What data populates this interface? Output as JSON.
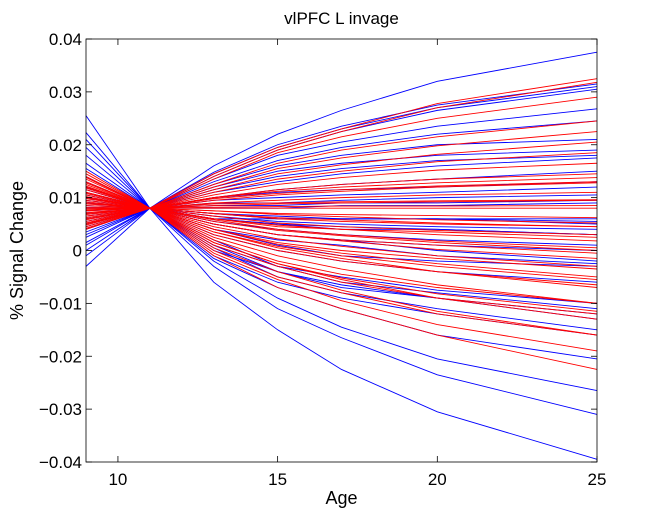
{
  "chart_data": {
    "type": "line",
    "title": "vlPFC L invage",
    "xlabel": "Age",
    "ylabel": "% Signal Change",
    "xlim": [
      9,
      25
    ],
    "ylim": [
      -0.04,
      0.04
    ],
    "xticks": [
      10,
      15,
      20,
      25
    ],
    "yticks": [
      -0.04,
      -0.03,
      -0.02,
      -0.01,
      0,
      0.01,
      0.02,
      0.03,
      0.04
    ],
    "xtick_labels": [
      "10",
      "15",
      "20",
      "25"
    ],
    "ytick_labels": [
      "−0.04",
      "−0.03",
      "−0.02",
      "−0.01",
      "0",
      "0.01",
      "0.02",
      "0.03",
      "0.04"
    ],
    "grid": false,
    "x": [
      9,
      11,
      13,
      15,
      17,
      20,
      25
    ],
    "pivot": {
      "x": 11,
      "y": 0.008
    },
    "colors": {
      "blue": "#0000ff",
      "red": "#ff0000"
    },
    "series": [
      {
        "color": "blue",
        "values": [
          0.0255,
          0.008,
          0.006,
          0.006,
          0.006,
          0.006,
          0.006
        ]
      },
      {
        "color": "blue",
        "values": [
          0.0223,
          0.008,
          0.001,
          -0.004,
          -0.007,
          -0.009,
          -0.012
        ]
      },
      {
        "color": "blue",
        "values": [
          0.021,
          0.008,
          0.004,
          0.001,
          -0.001,
          -0.002,
          -0.003
        ]
      },
      {
        "color": "blue",
        "values": [
          0.0195,
          0.008,
          0.002,
          -0.003,
          -0.006,
          -0.008,
          -0.011
        ]
      },
      {
        "color": "blue",
        "values": [
          0.018,
          0.008,
          0.003,
          0.0,
          -0.002,
          -0.004,
          -0.006
        ]
      },
      {
        "color": "blue",
        "values": [
          0.0165,
          0.008,
          -0.001,
          -0.006,
          -0.009,
          -0.012,
          -0.016
        ]
      },
      {
        "color": "blue",
        "values": [
          0.0155,
          0.008,
          0.005,
          0.003,
          0.002,
          0.001,
          0.0
        ]
      },
      {
        "color": "blue",
        "values": [
          0.014,
          0.008,
          -0.006,
          -0.015,
          -0.0225,
          -0.0305,
          -0.0395
        ]
      },
      {
        "color": "blue",
        "values": [
          0.013,
          0.008,
          -0.003,
          -0.011,
          -0.0165,
          -0.0235,
          -0.031
        ]
      },
      {
        "color": "blue",
        "values": [
          0.012,
          0.008,
          -0.002,
          -0.009,
          -0.0145,
          -0.0205,
          -0.0265
        ]
      },
      {
        "color": "blue",
        "values": [
          0.0115,
          0.008,
          0.006,
          0.005,
          0.004,
          0.004,
          0.003
        ]
      },
      {
        "color": "blue",
        "values": [
          0.011,
          0.008,
          -0.0015,
          -0.007,
          -0.011,
          -0.016,
          -0.0205
        ]
      },
      {
        "color": "blue",
        "values": [
          0.0105,
          0.008,
          0.007,
          0.006,
          0.006,
          0.006,
          0.005
        ]
      },
      {
        "color": "blue",
        "values": [
          0.01,
          0.008,
          0.0,
          -0.004,
          -0.0065,
          -0.009,
          -0.013
        ]
      },
      {
        "color": "blue",
        "values": [
          0.0095,
          0.008,
          0.008,
          0.008,
          0.0085,
          0.0085,
          0.009
        ]
      },
      {
        "color": "blue",
        "values": [
          0.009,
          0.008,
          0.001,
          -0.003,
          -0.005,
          -0.0075,
          -0.01
        ]
      },
      {
        "color": "blue",
        "values": [
          0.0085,
          0.008,
          0.009,
          0.009,
          0.0095,
          0.01,
          0.0105
        ]
      },
      {
        "color": "blue",
        "values": [
          0.008,
          0.008,
          0.004,
          0.002,
          0.001,
          -0.001,
          -0.0025
        ]
      },
      {
        "color": "blue",
        "values": [
          0.0075,
          0.008,
          0.0095,
          0.01,
          0.0105,
          0.011,
          0.012
        ]
      },
      {
        "color": "blue",
        "values": [
          0.007,
          0.008,
          0.01,
          0.0115,
          0.0125,
          0.0135,
          0.015
        ]
      },
      {
        "color": "blue",
        "values": [
          0.0065,
          0.008,
          0.006,
          0.005,
          0.0045,
          0.004,
          0.003
        ]
      },
      {
        "color": "blue",
        "values": [
          0.006,
          0.008,
          0.011,
          0.013,
          0.0145,
          0.016,
          0.0175
        ]
      },
      {
        "color": "blue",
        "values": [
          0.0055,
          0.008,
          0.012,
          0.015,
          0.0165,
          0.018,
          0.019
        ]
      },
      {
        "color": "blue",
        "values": [
          0.005,
          0.008,
          0.007,
          0.0065,
          0.006,
          0.006,
          0.0055
        ]
      },
      {
        "color": "blue",
        "values": [
          0.0045,
          0.008,
          0.013,
          0.017,
          0.0195,
          0.022,
          0.0245
        ]
      },
      {
        "color": "blue",
        "values": [
          0.004,
          0.008,
          0.0135,
          0.018,
          0.0205,
          0.0235,
          0.0268
        ]
      },
      {
        "color": "blue",
        "values": [
          0.0035,
          0.008,
          0.014,
          0.019,
          0.0225,
          0.0265,
          0.0305
        ]
      },
      {
        "color": "blue",
        "values": [
          0.003,
          0.008,
          0.0145,
          0.0195,
          0.023,
          0.027,
          0.031
        ]
      },
      {
        "color": "blue",
        "values": [
          0.0025,
          0.008,
          0.0148,
          0.02,
          0.0235,
          0.0275,
          0.0315
        ]
      },
      {
        "color": "blue",
        "values": [
          0.0015,
          0.008,
          0.016,
          0.022,
          0.0265,
          0.032,
          0.0375
        ]
      },
      {
        "color": "blue",
        "values": [
          0.001,
          0.008,
          0.005,
          0.003,
          0.002,
          0.0,
          -0.002
        ]
      },
      {
        "color": "blue",
        "values": [
          0.0,
          0.008,
          0.01,
          0.011,
          0.0115,
          0.012,
          0.013
        ]
      },
      {
        "color": "blue",
        "values": [
          -0.001,
          0.008,
          0.0115,
          0.014,
          0.0155,
          0.017,
          0.018
        ]
      },
      {
        "color": "blue",
        "values": [
          -0.003,
          0.008,
          0.0125,
          0.016,
          0.018,
          0.02,
          0.021
        ]
      },
      {
        "color": "blue",
        "values": [
          0.01,
          0.008,
          0.0055,
          0.004,
          0.003,
          0.002,
          0.001
        ]
      },
      {
        "color": "blue",
        "values": [
          0.012,
          0.008,
          0.0005,
          -0.005,
          -0.008,
          -0.011,
          -0.015
        ]
      },
      {
        "color": "blue",
        "values": [
          0.009,
          0.008,
          0.0065,
          0.0055,
          0.005,
          0.0045,
          0.004
        ]
      },
      {
        "color": "blue",
        "values": [
          0.008,
          0.008,
          0.0085,
          0.0085,
          0.009,
          0.009,
          0.0095
        ]
      },
      {
        "color": "red",
        "values": [
          0.015,
          0.008,
          0.0,
          -0.005,
          -0.008,
          -0.012,
          -0.016
        ]
      },
      {
        "color": "red",
        "values": [
          0.0145,
          0.008,
          -0.001,
          -0.007,
          -0.011,
          -0.016,
          -0.0225
        ]
      },
      {
        "color": "red",
        "values": [
          0.014,
          0.008,
          0.001,
          -0.003,
          -0.006,
          -0.009,
          -0.012
        ]
      },
      {
        "color": "red",
        "values": [
          0.0135,
          0.008,
          0.002,
          -0.002,
          -0.0045,
          -0.007,
          -0.01
        ]
      },
      {
        "color": "red",
        "values": [
          0.013,
          0.008,
          0.003,
          0.0,
          -0.002,
          -0.004,
          -0.0065
        ]
      },
      {
        "color": "red",
        "values": [
          0.0125,
          0.008,
          0.004,
          0.0015,
          0.0,
          -0.0015,
          -0.0035
        ]
      },
      {
        "color": "red",
        "values": [
          0.012,
          0.008,
          0.005,
          0.003,
          0.002,
          0.001,
          -0.0005
        ]
      },
      {
        "color": "red",
        "values": [
          0.0115,
          0.008,
          0.006,
          0.0045,
          0.004,
          0.0035,
          0.0025
        ]
      },
      {
        "color": "red",
        "values": [
          0.011,
          0.008,
          0.007,
          0.006,
          0.0055,
          0.005,
          0.0045
        ]
      },
      {
        "color": "red",
        "values": [
          0.0108,
          0.008,
          0.0075,
          0.007,
          0.0068,
          0.0066,
          0.0062
        ]
      },
      {
        "color": "red",
        "values": [
          0.0105,
          0.008,
          0.008,
          0.008,
          0.008,
          0.008,
          0.008
        ]
      },
      {
        "color": "red",
        "values": [
          0.0102,
          0.008,
          0.0085,
          0.0088,
          0.009,
          0.0092,
          0.0095
        ]
      },
      {
        "color": "red",
        "values": [
          0.01,
          0.008,
          0.009,
          0.0095,
          0.01,
          0.0105,
          0.011
        ]
      },
      {
        "color": "red",
        "values": [
          0.0098,
          0.008,
          0.0095,
          0.0105,
          0.0112,
          0.012,
          0.0128
        ]
      },
      {
        "color": "red",
        "values": [
          0.0095,
          0.008,
          0.01,
          0.0115,
          0.0125,
          0.0135,
          0.0145
        ]
      },
      {
        "color": "red",
        "values": [
          0.0092,
          0.008,
          0.0105,
          0.0125,
          0.0138,
          0.0152,
          0.0165
        ]
      },
      {
        "color": "red",
        "values": [
          0.009,
          0.008,
          0.011,
          0.0135,
          0.015,
          0.0168,
          0.0185
        ]
      },
      {
        "color": "red",
        "values": [
          0.0088,
          0.008,
          0.0115,
          0.0145,
          0.0162,
          0.0182,
          0.0205
        ]
      },
      {
        "color": "red",
        "values": [
          0.0085,
          0.008,
          0.012,
          0.0155,
          0.0175,
          0.0198,
          0.0225
        ]
      },
      {
        "color": "red",
        "values": [
          0.0082,
          0.008,
          0.0125,
          0.0165,
          0.019,
          0.0215,
          0.0245
        ]
      },
      {
        "color": "red",
        "values": [
          0.008,
          0.008,
          0.0135,
          0.0185,
          0.0215,
          0.025,
          0.029
        ]
      },
      {
        "color": "red",
        "values": [
          0.0078,
          0.008,
          0.0145,
          0.0195,
          0.023,
          0.0278,
          0.0325
        ]
      },
      {
        "color": "red",
        "values": [
          0.0076,
          0.008,
          0.014,
          0.019,
          0.0225,
          0.027,
          0.0318
        ]
      },
      {
        "color": "red",
        "values": [
          0.0075,
          0.008,
          0.007,
          0.0062,
          0.0058,
          0.0052,
          0.0045
        ]
      },
      {
        "color": "red",
        "values": [
          0.0072,
          0.008,
          0.006,
          0.0048,
          0.004,
          0.003,
          0.0018
        ]
      },
      {
        "color": "red",
        "values": [
          0.007,
          0.008,
          0.0055,
          0.0038,
          0.0028,
          0.0015,
          0.0
        ]
      },
      {
        "color": "red",
        "values": [
          0.0068,
          0.008,
          0.005,
          0.003,
          0.0018,
          0.0002,
          -0.0015
        ]
      },
      {
        "color": "red",
        "values": [
          0.0065,
          0.008,
          0.0045,
          0.0022,
          0.0008,
          -0.001,
          -0.003
        ]
      },
      {
        "color": "red",
        "values": [
          0.0062,
          0.008,
          0.004,
          0.0012,
          -0.0005,
          -0.0025,
          -0.005
        ]
      },
      {
        "color": "red",
        "values": [
          0.006,
          0.008,
          0.0035,
          0.0005,
          -0.0015,
          -0.004,
          -0.007
        ]
      },
      {
        "color": "red",
        "values": [
          0.0058,
          0.008,
          0.0025,
          -0.001,
          -0.0035,
          -0.0065,
          -0.01
        ]
      },
      {
        "color": "red",
        "values": [
          0.0055,
          0.008,
          0.0015,
          -0.0025,
          -0.0055,
          -0.009,
          -0.013
        ]
      },
      {
        "color": "red",
        "values": [
          0.0052,
          0.008,
          0.0005,
          -0.004,
          -0.0075,
          -0.0115,
          -0.016
        ]
      },
      {
        "color": "red",
        "values": [
          0.005,
          0.008,
          -0.0005,
          -0.0055,
          -0.0095,
          -0.014,
          -0.019
        ]
      },
      {
        "color": "red",
        "values": [
          0.0048,
          0.008,
          0.01,
          0.0112,
          0.012,
          0.0128,
          0.0138
        ]
      },
      {
        "color": "red",
        "values": [
          0.0045,
          0.008,
          0.0098,
          0.0108,
          0.0115,
          0.0122,
          0.013
        ]
      },
      {
        "color": "red",
        "values": [
          0.0042,
          0.008,
          0.0088,
          0.009,
          0.0092,
          0.0094,
          0.0096
        ]
      },
      {
        "color": "red",
        "values": [
          0.004,
          0.008,
          0.0082,
          0.0083,
          0.0084,
          0.0084,
          0.0085
        ]
      },
      {
        "color": "red",
        "values": [
          0.011,
          0.008,
          0.0075,
          0.0068,
          0.0064,
          0.0058,
          0.0052
        ]
      },
      {
        "color": "red",
        "values": [
          0.0118,
          0.008,
          0.0065,
          0.0052,
          0.0045,
          0.0038,
          0.003
        ]
      },
      {
        "color": "red",
        "values": [
          0.0122,
          0.008,
          0.0058,
          0.004,
          0.003,
          0.0018,
          0.0005
        ]
      },
      {
        "color": "red",
        "values": [
          0.0128,
          0.008,
          0.0035,
          0.0008,
          -0.001,
          -0.003,
          -0.0055
        ]
      },
      {
        "color": "red",
        "values": [
          0.0138,
          0.008,
          0.0015,
          -0.0025,
          -0.0052,
          -0.0082,
          -0.0115
        ]
      }
    ]
  }
}
